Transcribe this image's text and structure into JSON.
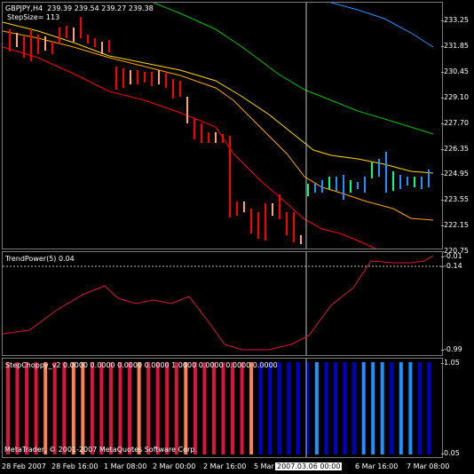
{
  "header": {
    "symbol": "GBPJPY,H4",
    "ohlc": "239.39 239.54 239.27 239.38",
    "stepsize": "StepSize= 113"
  },
  "main_axis": [
    "233.25",
    "231.85",
    "230.45",
    "229.10",
    "227.70",
    "226.35",
    "224.95",
    "223.55",
    "222.15",
    "220.75"
  ],
  "trendpower": {
    "title": "TrendPower(5) 0.04",
    "axis": [
      "-0.01",
      "-0.14",
      "-0.99"
    ]
  },
  "stepchoppy": {
    "title": "StepChoppy_v2 0.0000 0.0000 0.0000 0.0000 1.0000 0.0000 0.0000 0.0000",
    "axis": [
      "1.05",
      "0.05"
    ],
    "bars": [
      {
        "color": "#dc143c"
      },
      {
        "color": "#dc143c"
      },
      {
        "color": "#dc143c"
      },
      {
        "color": "#dc143c"
      },
      {
        "color": "#ff7f50"
      },
      {
        "color": "#dc143c"
      },
      {
        "color": "#dc143c"
      },
      {
        "color": "#ff7f50"
      },
      {
        "color": "#ff7f50"
      },
      {
        "color": "#dc143c"
      },
      {
        "color": "#dc143c"
      },
      {
        "color": "#dc143c"
      },
      {
        "color": "#dc143c"
      },
      {
        "color": "#dc143c"
      },
      {
        "color": "#ff7f50"
      },
      {
        "color": "#dc143c"
      },
      {
        "color": "#dc143c"
      },
      {
        "color": "#dc143c"
      },
      {
        "color": "#dc143c"
      },
      {
        "color": "#ff7f50"
      },
      {
        "color": "#dc143c"
      },
      {
        "color": "#dc143c"
      },
      {
        "color": "#dc143c"
      },
      {
        "color": "#dc143c"
      },
      {
        "color": "#dc143c"
      },
      {
        "color": "#dc143c"
      },
      {
        "color": "#ff7f50"
      },
      {
        "color": "#0000cd"
      },
      {
        "color": "#0000cd"
      },
      {
        "color": "#0000cd"
      },
      {
        "color": "#0000cd"
      },
      {
        "color": "#0000cd"
      },
      {
        "color": "#0000cd"
      },
      {
        "color": "#1e90ff"
      },
      {
        "color": "#0000cd"
      },
      {
        "color": "#0000cd"
      },
      {
        "color": "#0000cd"
      },
      {
        "color": "#0000cd"
      },
      {
        "color": "#1e90ff"
      },
      {
        "color": "#1e90ff"
      },
      {
        "color": "#1e90ff"
      },
      {
        "color": "#0000cd"
      },
      {
        "color": "#1e90ff"
      },
      {
        "color": "#1e90ff"
      },
      {
        "color": "#0000cd"
      },
      {
        "color": "#0000cd"
      }
    ]
  },
  "time_axis": [
    "28 Feb 2007",
    "28 Feb 16:00",
    "1 Mar 08:00",
    "2 Mar 00:00",
    "2 Mar 16:00",
    "5 Mar",
    "2007.03.06 00:00",
    "6 Mar 16:00",
    "7 Mar 08:00"
  ],
  "copyright": "MetaTrader, © 2001-2007 MetaQuotes Software Corp.",
  "colors": {
    "bull": "#1e90ff",
    "bear": "#ff0000",
    "band_blue": "#1e90ff",
    "band_green": "#00c000",
    "band_yellow": "#ffd700",
    "band_orange": "#ffa500",
    "band_red": "#ff0000"
  }
}
